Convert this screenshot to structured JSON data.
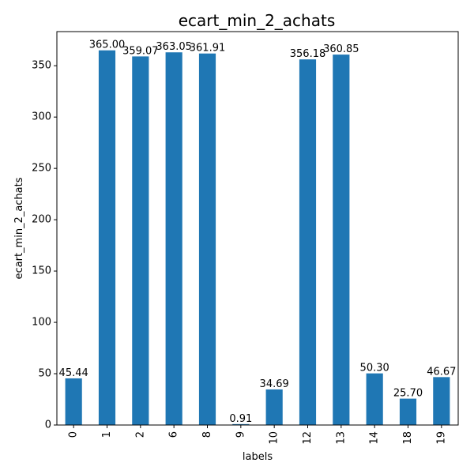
{
  "chart_data": {
    "type": "bar",
    "title": "ecart_min_2_achats",
    "xlabel": "labels",
    "ylabel": "ecart_min_2_achats",
    "categories": [
      "0",
      "1",
      "2",
      "6",
      "8",
      "9",
      "10",
      "12",
      "13",
      "14",
      "18",
      "19"
    ],
    "values": [
      45.44,
      365.0,
      359.07,
      363.05,
      361.91,
      0.91,
      34.69,
      356.18,
      360.85,
      50.3,
      25.7,
      46.67
    ],
    "data_labels": [
      "45.44",
      "365.00",
      "359.07",
      "363.05",
      "361.91",
      "0.91",
      "34.69",
      "356.18",
      "360.85",
      "50.30",
      "25.70",
      "46.67"
    ],
    "ylim": [
      0,
      383.25
    ],
    "yticks": [
      0,
      50,
      100,
      150,
      200,
      250,
      300,
      350
    ],
    "bar_color": "#1f77b4",
    "grid": false,
    "legend": "none"
  }
}
